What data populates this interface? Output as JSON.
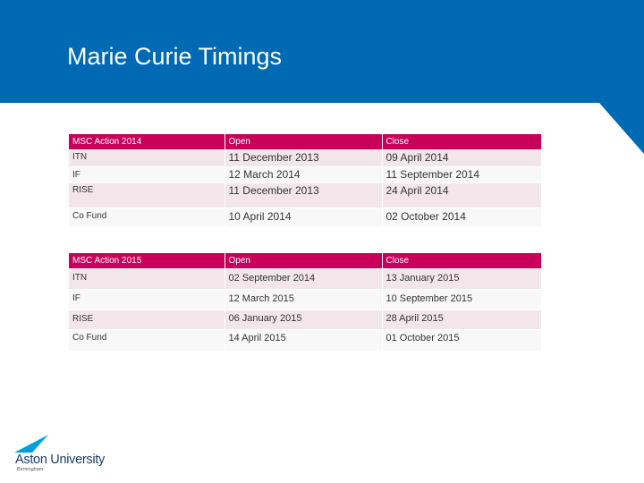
{
  "slide": {
    "title": "Marie Curie Timings"
  },
  "colors": {
    "header": "#0069b4",
    "table_header": "#c8005a",
    "row_shade": "#f2e6eb"
  },
  "table_2014": {
    "headers": [
      "MSC Action 2014",
      "Open",
      "Close"
    ],
    "rows": [
      [
        "ITN",
        "11 December 2013",
        "09 April 2014"
      ],
      [
        "IF",
        "12 March 2014",
        "11 September 2014"
      ],
      [
        "RISE",
        "11 December 2013",
        "24 April 2014"
      ],
      [
        "Co Fund",
        "10 April 2014",
        "02 October 2014"
      ]
    ]
  },
  "table_2015": {
    "headers": [
      "MSC Action 2015",
      "Open",
      "Close"
    ],
    "rows": [
      [
        "ITN",
        "02 September 2014",
        "13 January 2015"
      ],
      [
        "IF",
        "12 March 2015",
        "10 September 2015"
      ],
      [
        "RISE",
        "06 January 2015",
        "28 April 2015"
      ],
      [
        "Co Fund",
        "14 April 2015",
        "01 October 2015"
      ]
    ]
  },
  "logo": {
    "name": "Aston University",
    "tagline": "Birmingham",
    "icon": "aston-swoosh-icon"
  }
}
